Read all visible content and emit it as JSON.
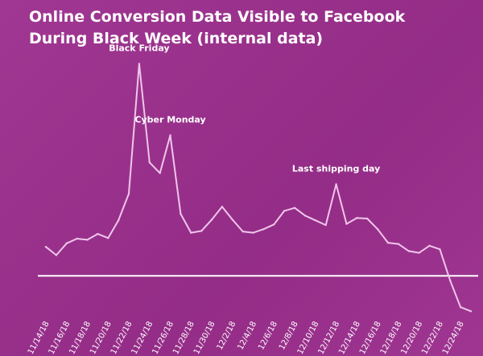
{
  "header": {
    "title_line1": "Online Conversion Data Visible to Facebook",
    "title_line2": "During Black Week (internal data)"
  },
  "colors": {
    "background": "#9c2f8e",
    "line": "#f0c6ea",
    "baseline": "#ffffff",
    "text": "#ffffff"
  },
  "chart_data": {
    "type": "line",
    "title": "Online Conversion Data Visible to Facebook During Black Week (internal data)",
    "xlabel": "",
    "ylabel": "",
    "grid": false,
    "legend": "none",
    "x": [
      "11/14/18",
      "11/15/18",
      "11/16/18",
      "11/17/18",
      "11/18/18",
      "11/19/18",
      "11/20/18",
      "11/21/18",
      "11/22/18",
      "11/23/18",
      "11/24/18",
      "11/25/18",
      "11/26/18",
      "11/27/18",
      "11/28/18",
      "11/29/18",
      "11/30/18",
      "12/1/18",
      "12/2/18",
      "12/3/18",
      "12/4/18",
      "12/5/18",
      "12/6/18",
      "12/7/18",
      "12/8/18",
      "12/9/18",
      "12/10/18",
      "12/11/18",
      "12/12/18",
      "12/13/18",
      "12/14/18",
      "12/15/18",
      "12/16/18",
      "12/17/18",
      "12/18/18",
      "12/19/18",
      "12/20/18",
      "12/21/18",
      "12/22/18",
      "12/23/18",
      "12/24/18",
      "12/25/18"
    ],
    "tick_labels": [
      "11/14/18",
      "11/16/18",
      "11/18/18",
      "11/20/18",
      "11/22/18",
      "11/24/18",
      "11/26/18",
      "11/28/18",
      "11/30/18",
      "12/2/18",
      "12/4/18",
      "12/6/18",
      "12/8/18",
      "12/10/18",
      "12/12/18",
      "12/14/18",
      "12/16/18",
      "12/18/18",
      "12/20/18",
      "12/22/18",
      "12/24/18"
    ],
    "ylim": [
      -50,
      380
    ],
    "baseline": 0,
    "series": [
      {
        "values": [
          49,
          35,
          55,
          63,
          61,
          71,
          64,
          94,
          139,
          359,
          192,
          174,
          238,
          105,
          73,
          76,
          95,
          117,
          95,
          75,
          73,
          79,
          87,
          110,
          115,
          102,
          94,
          86,
          155,
          88,
          98,
          97,
          79,
          56,
          54,
          42,
          39,
          51,
          45,
          -8,
          -53,
          -60
        ]
      }
    ],
    "annotations": [
      {
        "text": "Black Friday",
        "x": "11/23/18"
      },
      {
        "text": "Cyber Monday",
        "x": "11/26/18"
      },
      {
        "text": "Last shipping day",
        "x": "12/12/18"
      }
    ]
  }
}
